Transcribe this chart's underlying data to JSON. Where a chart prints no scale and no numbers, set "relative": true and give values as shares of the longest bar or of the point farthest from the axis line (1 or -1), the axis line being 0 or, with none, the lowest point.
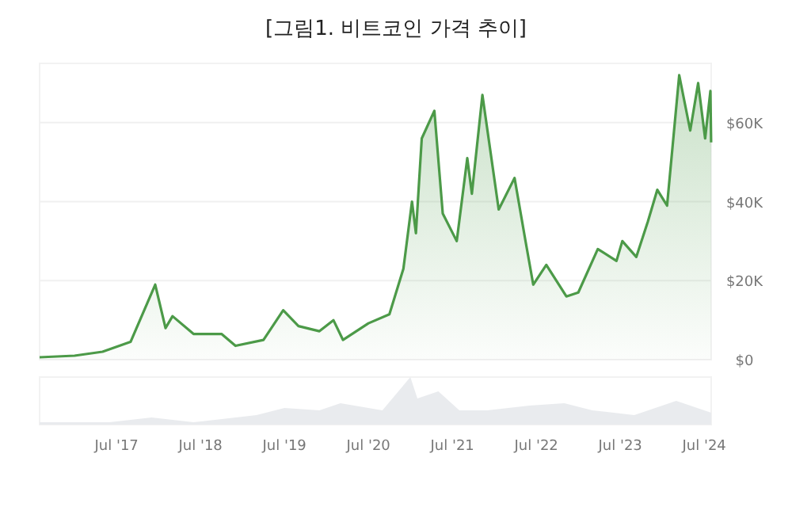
{
  "chart_data": [
    {
      "type": "area",
      "title": "[그림1. 비트코인 가격 추이]",
      "tick_labels": "y",
      "grid": "y",
      "xlim": [
        "2016-08",
        "2024-08"
      ],
      "ylim": [
        0,
        75000
      ],
      "yticks": [
        {
          "value": 0,
          "label": "$0"
        },
        {
          "value": 20000,
          "label": "$20K"
        },
        {
          "value": 40000,
          "label": "$40K"
        },
        {
          "value": 60000,
          "label": "$60K"
        }
      ],
      "series": [
        {
          "color": "#4c9a48",
          "x": [
            "2016-08",
            "2017-01",
            "2017-05",
            "2017-09",
            "2017-12-17",
            "2018-02",
            "2018-03",
            "2018-06",
            "2018-10",
            "2018-12",
            "2019-04",
            "2019-06-26",
            "2019-09",
            "2019-12",
            "2020-02",
            "2020-03-12",
            "2020-07",
            "2020-10",
            "2020-12",
            "2021-01-08",
            "2021-01-25",
            "2021-02-20",
            "2021-04-14",
            "2021-05-20",
            "2021-07-20",
            "2021-09-05",
            "2021-09-25",
            "2021-11-10",
            "2022-01-20",
            "2022-03-28",
            "2022-05-15",
            "2022-06-18",
            "2022-08-14",
            "2022-11-10",
            "2023-01-01",
            "2023-03-25",
            "2023-06-15",
            "2023-07-10",
            "2023-09-10",
            "2023-10-30",
            "2023-12-10",
            "2024-01-22",
            "2024-03-14",
            "2024-05-01",
            "2024-06-05",
            "2024-07-05",
            "2024-07-28",
            "2024-07-31"
          ],
          "values": [
            600,
            1000,
            2000,
            4500,
            19000,
            8000,
            11000,
            6500,
            6500,
            3500,
            5000,
            12500,
            8500,
            7200,
            10000,
            5000,
            9200,
            11500,
            23000,
            40000,
            32000,
            56000,
            63000,
            37000,
            30000,
            51000,
            42000,
            67000,
            38000,
            46000,
            30000,
            19000,
            24000,
            16000,
            17000,
            28000,
            25000,
            30000,
            26000,
            35000,
            43000,
            39000,
            72000,
            58000,
            70000,
            56000,
            68000,
            55000
          ]
        }
      ]
    },
    {
      "type": "area",
      "relative": true,
      "tick_labels": "x",
      "xlim": [
        "2016-08",
        "2024-08"
      ],
      "xticks": [
        {
          "value": "2017-07",
          "label": "Jul '17"
        },
        {
          "value": "2018-07",
          "label": "Jul '18"
        },
        {
          "value": "2019-07",
          "label": "Jul '19"
        },
        {
          "value": "2020-07",
          "label": "Jul '20"
        },
        {
          "value": "2021-07",
          "label": "Jul '21"
        },
        {
          "value": "2022-07",
          "label": "Jul '22"
        },
        {
          "value": "2023-07",
          "label": "Jul '23"
        },
        {
          "value": "2024-07",
          "label": "Jul '24"
        }
      ],
      "series": [
        {
          "color": "#e9ebee",
          "x": [
            "2016-08",
            "2017-06",
            "2017-12",
            "2018-06",
            "2019-03",
            "2019-07",
            "2019-12",
            "2020-03",
            "2020-09",
            "2021-01",
            "2021-02",
            "2021-05",
            "2021-08",
            "2021-12",
            "2022-06",
            "2022-11",
            "2023-03",
            "2023-09",
            "2024-03",
            "2024-08"
          ],
          "values": [
            0.05,
            0.05,
            0.15,
            0.05,
            0.2,
            0.35,
            0.3,
            0.45,
            0.3,
            1.0,
            0.55,
            0.7,
            0.3,
            0.3,
            0.4,
            0.45,
            0.3,
            0.2,
            0.5,
            0.25
          ]
        }
      ]
    }
  ]
}
